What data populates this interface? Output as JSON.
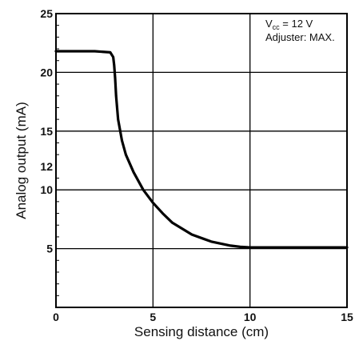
{
  "chart_data": {
    "type": "line",
    "xlabel": "Sensing distance (cm)",
    "ylabel": "Analog output (mA)",
    "xlim": [
      0,
      15
    ],
    "ylim": [
      0,
      25
    ],
    "x_ticks": [
      0,
      5,
      10,
      15
    ],
    "y_ticks": [
      5,
      10,
      12,
      15,
      20,
      25
    ],
    "x_grid": [
      5,
      10
    ],
    "y_grid": [
      5,
      10,
      15,
      20
    ],
    "grid": true,
    "annotation": {
      "line1_prefix": "V",
      "line1_subscript": "cc",
      "line1_suffix": " = 12 V",
      "line2": "Adjuster: MAX.",
      "position": "top-right"
    },
    "series": [
      {
        "color": "#000000",
        "x": [
          0,
          1,
          2,
          2.8,
          2.95,
          3.0,
          3.05,
          3.1,
          3.2,
          3.4,
          3.6,
          4.0,
          4.5,
          5.0,
          5.5,
          6.0,
          7.0,
          8.0,
          9.0,
          9.5,
          10.0,
          11.0,
          12.0,
          13.0,
          14.0,
          15.0
        ],
        "values": [
          21.8,
          21.8,
          21.8,
          21.7,
          21.3,
          20.6,
          19.5,
          18.0,
          16.0,
          14.2,
          13.0,
          11.5,
          10.0,
          8.9,
          8.0,
          7.2,
          6.2,
          5.6,
          5.25,
          5.15,
          5.1,
          5.1,
          5.1,
          5.1,
          5.1,
          5.1
        ]
      }
    ]
  }
}
